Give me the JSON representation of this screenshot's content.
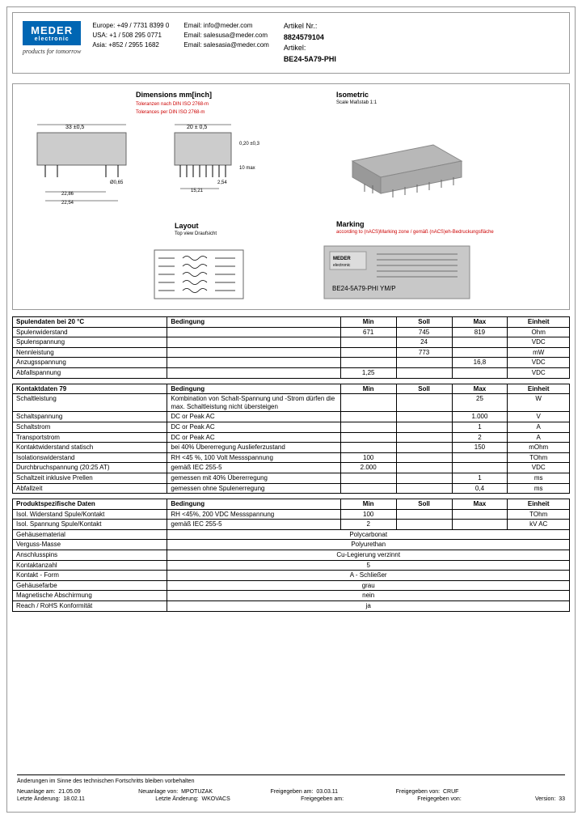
{
  "logo": {
    "main": "MEDER",
    "sub": "electronic"
  },
  "slogan": "products for tomorrow",
  "contact": {
    "rows": [
      [
        "Europe:",
        "+49 / 7731 8399 0",
        "Email: info@meder.com"
      ],
      [
        "USA:",
        "+1 / 508 295 0771",
        "Email: salesusa@meder.com"
      ],
      [
        "Asia:",
        "+852 / 2955 1682",
        "Email: salesasia@meder.com"
      ]
    ]
  },
  "article": {
    "nr_label": "Artikel Nr.:",
    "nr": "8824579104",
    "name_label": "Artikel:",
    "name": "BE24-5A79-PHI"
  },
  "diagram": {
    "dimensions_title": "Dimensions mm[inch]",
    "dim_note": "Toleranzen nach DIN ISO 2768-m",
    "dim_note2": "Tolerances per DIN ISO 2768-m",
    "isometric_title": "Isometric",
    "iso_sub": "Scale\nMaßstab 1:1",
    "layout_title": "Layout",
    "layout_sub": "Top view\nDraufsicht",
    "marking_title": "Marking",
    "marking_sub": "according to (nACS)Marking zone / gemäß (nACS)eh-Bedruckungsfläche",
    "dim1": "33 ±0,5",
    "dim2": "20 ± 0,5",
    "dim3": "0,20 ±0,3",
    "dim4": "10 max",
    "dim5": "22,86",
    "dim6": "22,54",
    "dim7": "Ø0,65",
    "dim8": "15,21",
    "dim9": "2,54",
    "marking_text": "BE24-5A79-PHI YM/P"
  },
  "table1": {
    "header": [
      "Spulendaten bei 20 °C",
      "Bedingung",
      "Min",
      "Soll",
      "Max",
      "Einheit"
    ],
    "rows": [
      [
        "Spulenwiderstand",
        "",
        "671",
        "745",
        "819",
        "Ohm"
      ],
      [
        "Spulenspannung",
        "",
        "",
        "24",
        "",
        "VDC"
      ],
      [
        "Nennleistung",
        "",
        "",
        "773",
        "",
        "mW"
      ],
      [
        "Anzugsspannung",
        "",
        "",
        "",
        "16,8",
        "VDC"
      ],
      [
        "Abfallspannung",
        "",
        "1,25",
        "",
        "",
        "VDC"
      ]
    ]
  },
  "table2": {
    "header": [
      "Kontaktdaten  79",
      "Bedingung",
      "Min",
      "Soll",
      "Max",
      "Einheit"
    ],
    "rows": [
      [
        "Schaltleistung",
        "Kombination von Schalt-Spannung und -Strom dürfen die max. Schaltleistung nicht übersteigen",
        "",
        "",
        "25",
        "W"
      ],
      [
        "Schaltspannung",
        "DC or Peak AC",
        "",
        "",
        "1.000",
        "V"
      ],
      [
        "Schaltstrom",
        "DC or Peak AC",
        "",
        "",
        "1",
        "A"
      ],
      [
        "Transportstrom",
        "DC or Peak AC",
        "",
        "",
        "2",
        "A"
      ],
      [
        "Kontaktwiderstand statisch",
        "bei 40% Übererregung\nAuslieferzustand",
        "",
        "",
        "150",
        "mOhm"
      ],
      [
        "Isolationswiderstand",
        "RH <45 %, 100 Volt Messspannung",
        "100",
        "",
        "",
        "TOhm"
      ],
      [
        "Durchbruchspannung  (20:25 AT)",
        "gemäß IEC 255-5",
        "2.000",
        "",
        "",
        "VDC"
      ],
      [
        "Schaltzeit inklusive Prellen",
        "gemessen mit 40% Übererregung",
        "",
        "",
        "1",
        "ms"
      ],
      [
        "Abfallzeit",
        "gemessen ohne Spulenerregung",
        "",
        "",
        "0,4",
        "ms"
      ]
    ]
  },
  "table3": {
    "header": [
      "Produktspezifische Daten",
      "Bedingung",
      "Min",
      "Soll",
      "Max",
      "Einheit"
    ],
    "rows": [
      [
        "Isol. Widerstand Spule/Kontakt",
        "RH <45%, 200 VDC Messspannung",
        "100",
        "",
        "",
        "TOhm"
      ],
      [
        "Isol. Spannung Spule/Kontakt",
        "gemäß IEC 255-5",
        "2",
        "",
        "",
        "kV AC"
      ]
    ],
    "wide_rows": [
      [
        "Gehäusematerial",
        "Polycarbonat"
      ],
      [
        "Verguss-Masse",
        "Polyurethan"
      ],
      [
        "Anschlusspins",
        "Cu-Legierung verzinnt"
      ],
      [
        "Kontaktanzahl",
        "5"
      ],
      [
        "Kontakt - Form",
        "A - Schließer"
      ],
      [
        "Gehäusefarbe",
        "grau"
      ],
      [
        "Magnetische Abschirmung",
        "nein"
      ],
      [
        "Reach / RoHS Konformität",
        "ja"
      ]
    ]
  },
  "footer": {
    "note": "Änderungen im Sinne des technischen Fortschritts bleiben vorbehalten",
    "r1": [
      "Neuanlage am:",
      "21.05.09",
      "Neuanlage von:",
      "MPOTUZAK",
      "Freigegeben am:",
      "03.03.11",
      "Freigegeben von:",
      "CRUF",
      "",
      ""
    ],
    "r2": [
      "Letzte Änderung:",
      "18.02.11",
      "Letzte Änderung:",
      "WKOVACS",
      "Freigegeben am:",
      "",
      "Freigegeben von:",
      "",
      "Version:",
      "33"
    ]
  }
}
